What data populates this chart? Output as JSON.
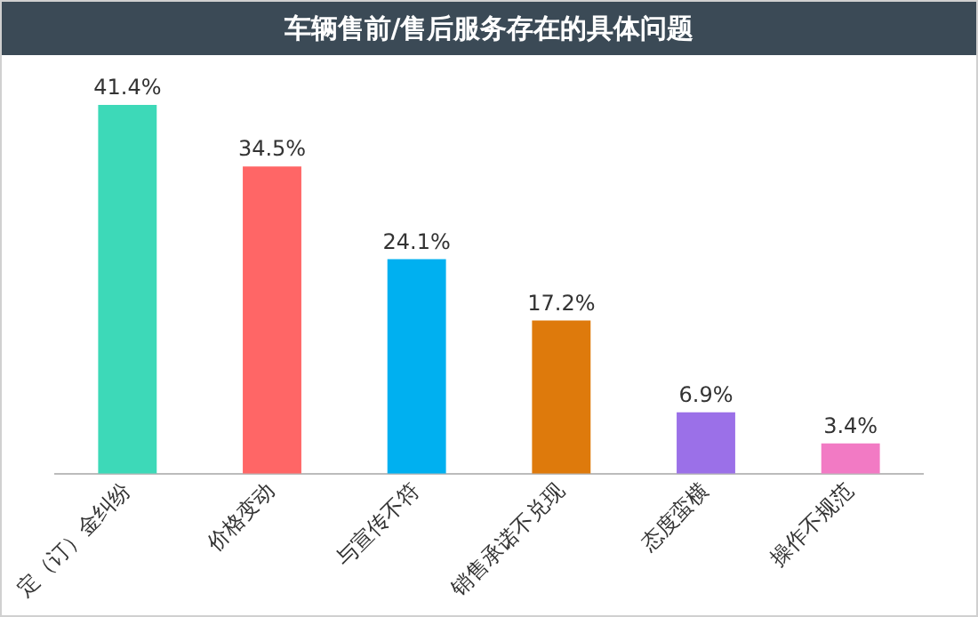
{
  "chart_data": {
    "type": "bar",
    "title": "车辆售前/售后服务存在的具体问题",
    "categories": [
      "定（订）金纠纷",
      "价格变动",
      "与宣传不符",
      "销售承诺不兑现",
      "态度蛮横",
      "操作不规范"
    ],
    "values": [
      41.4,
      34.5,
      24.1,
      17.2,
      6.9,
      3.4
    ],
    "colors": [
      "#3dd9b8",
      "#ff6666",
      "#00b0f0",
      "#de7a0c",
      "#9b70e8",
      "#f27ac4"
    ],
    "value_labels": [
      "41.4%",
      "34.5%",
      "24.1%",
      "17.2%",
      "6.9%",
      "3.4%"
    ],
    "grid": false,
    "legend": false
  }
}
